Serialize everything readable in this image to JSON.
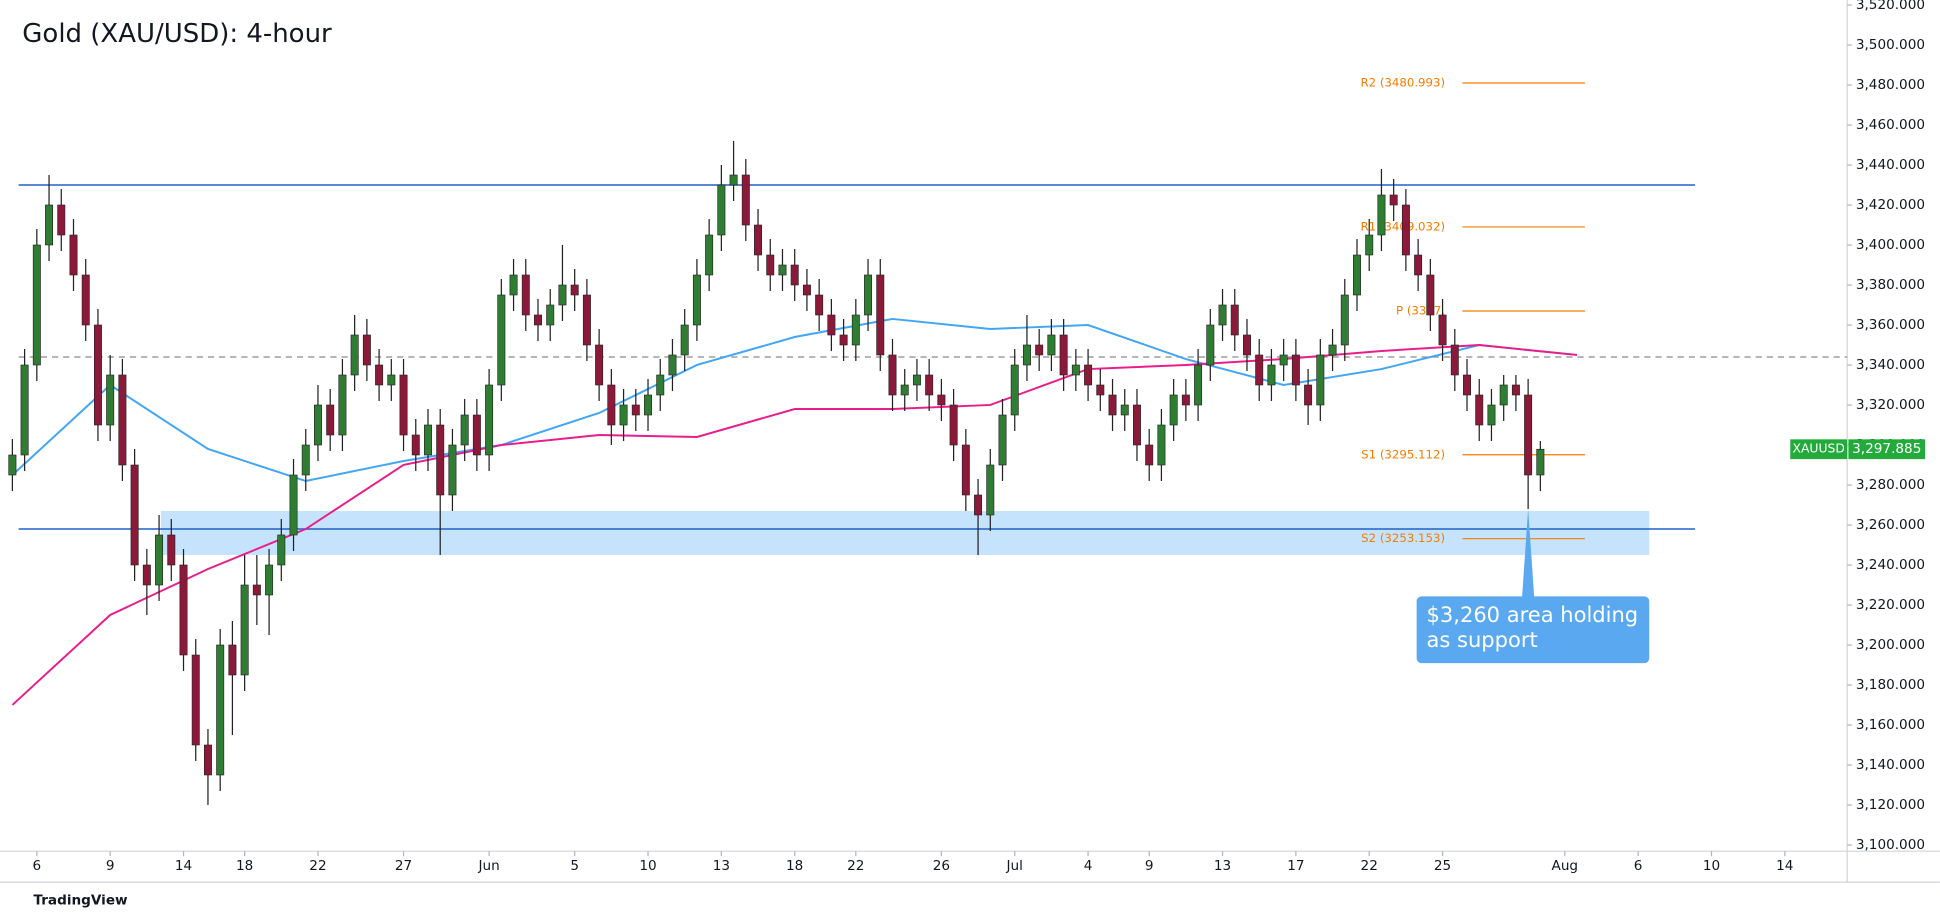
{
  "chart_data": {
    "type": "candlestick",
    "title": "Gold (XAU/USD): 4-hour",
    "symbol": "XAUUSD",
    "last_price": {
      "value": 3297.885,
      "label": "3,297.885"
    },
    "footer": "TradingView",
    "up_color": "#2e7d32",
    "down_color": "#8b1a3a",
    "open": [
      3285,
      3295,
      3340,
      3400,
      3420,
      3405,
      3385,
      3360,
      3310,
      3335,
      3290,
      3240,
      3230,
      3255,
      3240,
      3195,
      3150,
      3135,
      3200,
      3185,
      3230,
      3225,
      3240,
      3255,
      3285,
      3300,
      3320,
      3305,
      3335,
      3355,
      3340,
      3330,
      3335,
      3305,
      3295,
      3310,
      3275,
      3300,
      3315,
      3295,
      3330,
      3375,
      3385,
      3365,
      3360,
      3370,
      3380,
      3375,
      3350,
      3330,
      3310,
      3320,
      3315,
      3325,
      3335,
      3345,
      3360,
      3385,
      3405,
      3430,
      3435,
      3410,
      3395,
      3385,
      3390,
      3380,
      3375,
      3365,
      3355,
      3350,
      3365,
      3385,
      3345,
      3325,
      3330,
      3335,
      3325,
      3320,
      3300,
      3275,
      3265,
      3290,
      3315,
      3340,
      3350,
      3345,
      3355,
      3335,
      3340,
      3330,
      3325,
      3315,
      3320,
      3300,
      3290,
      3310,
      3325,
      3320,
      3340,
      3360,
      3370,
      3355,
      3345,
      3330,
      3340,
      3345,
      3330,
      3320,
      3345,
      3350,
      3375,
      3395,
      3405,
      3425,
      3420,
      3395,
      3385,
      3365,
      3350,
      3335,
      3325,
      3310,
      3320,
      3330,
      3325,
      3285
    ],
    "high": [
      3303,
      3348,
      3408,
      3435,
      3428,
      3413,
      3393,
      3368,
      3345,
      3343,
      3298,
      3248,
      3265,
      3263,
      3248,
      3203,
      3158,
      3208,
      3212,
      3245,
      3245,
      3248,
      3263,
      3293,
      3308,
      3330,
      3328,
      3343,
      3365,
      3363,
      3348,
      3343,
      3343,
      3313,
      3318,
      3318,
      3308,
      3323,
      3323,
      3338,
      3383,
      3393,
      3393,
      3373,
      3378,
      3400,
      3388,
      3383,
      3358,
      3338,
      3328,
      3328,
      3333,
      3343,
      3353,
      3368,
      3393,
      3413,
      3440,
      3452,
      3443,
      3418,
      3403,
      3398,
      3398,
      3388,
      3383,
      3373,
      3363,
      3373,
      3393,
      3393,
      3353,
      3338,
      3343,
      3343,
      3333,
      3328,
      3308,
      3283,
      3298,
      3323,
      3348,
      3365,
      3358,
      3363,
      3363,
      3348,
      3348,
      3338,
      3333,
      3328,
      3328,
      3308,
      3318,
      3333,
      3333,
      3348,
      3368,
      3378,
      3378,
      3363,
      3353,
      3348,
      3353,
      3353,
      3338,
      3353,
      3358,
      3383,
      3403,
      3413,
      3438,
      3433,
      3428,
      3403,
      3393,
      3373,
      3358,
      3343,
      3333,
      3328,
      3335,
      3335,
      3333,
      3302
    ],
    "low": [
      3277,
      3287,
      3332,
      3392,
      3397,
      3377,
      3352,
      3302,
      3302,
      3282,
      3232,
      3215,
      3222,
      3232,
      3187,
      3142,
      3120,
      3127,
      3155,
      3177,
      3210,
      3205,
      3232,
      3247,
      3277,
      3292,
      3297,
      3297,
      3327,
      3332,
      3322,
      3322,
      3297,
      3287,
      3287,
      3245,
      3267,
      3292,
      3287,
      3287,
      3322,
      3367,
      3357,
      3352,
      3352,
      3362,
      3367,
      3342,
      3322,
      3300,
      3302,
      3307,
      3307,
      3317,
      3327,
      3337,
      3352,
      3377,
      3397,
      3422,
      3402,
      3387,
      3377,
      3377,
      3372,
      3367,
      3357,
      3347,
      3342,
      3342,
      3357,
      3337,
      3317,
      3317,
      3322,
      3317,
      3312,
      3292,
      3267,
      3245,
      3257,
      3282,
      3307,
      3332,
      3337,
      3337,
      3327,
      3327,
      3322,
      3317,
      3307,
      3307,
      3292,
      3282,
      3282,
      3302,
      3312,
      3312,
      3332,
      3352,
      3347,
      3337,
      3322,
      3322,
      3332,
      3322,
      3310,
      3312,
      3337,
      3342,
      3367,
      3387,
      3397,
      3412,
      3387,
      3377,
      3357,
      3342,
      3327,
      3317,
      3302,
      3302,
      3312,
      3317,
      3268,
      3277
    ],
    "close": [
      3295,
      3340,
      3400,
      3420,
      3405,
      3385,
      3360,
      3310,
      3335,
      3290,
      3240,
      3230,
      3255,
      3240,
      3195,
      3150,
      3135,
      3200,
      3185,
      3230,
      3225,
      3240,
      3255,
      3285,
      3300,
      3320,
      3305,
      3335,
      3355,
      3340,
      3330,
      3335,
      3305,
      3295,
      3310,
      3275,
      3300,
      3315,
      3295,
      3330,
      3375,
      3385,
      3365,
      3360,
      3370,
      3380,
      3375,
      3350,
      3330,
      3310,
      3320,
      3315,
      3325,
      3335,
      3345,
      3360,
      3385,
      3405,
      3430,
      3435,
      3410,
      3395,
      3385,
      3390,
      3380,
      3375,
      3365,
      3355,
      3350,
      3365,
      3385,
      3345,
      3325,
      3330,
      3335,
      3325,
      3320,
      3300,
      3275,
      3265,
      3290,
      3315,
      3340,
      3350,
      3345,
      3355,
      3335,
      3340,
      3330,
      3325,
      3315,
      3320,
      3300,
      3290,
      3310,
      3325,
      3320,
      3340,
      3360,
      3370,
      3355,
      3345,
      3330,
      3340,
      3345,
      3330,
      3320,
      3345,
      3350,
      3375,
      3395,
      3405,
      3425,
      3420,
      3395,
      3385,
      3365,
      3350,
      3335,
      3325,
      3310,
      3320,
      3330,
      3325,
      3285,
      3297.885
    ],
    "series": [
      {
        "color": "#42a5f5",
        "x": [
          0,
          8,
          16,
          24,
          32,
          40,
          48,
          56,
          64,
          72,
          80,
          88,
          96,
          104,
          112,
          120,
          128
        ],
        "values": [
          3285,
          3330,
          3298,
          3282,
          3292,
          3300,
          3316,
          3340,
          3354,
          3363,
          3358,
          3360,
          3343,
          3330,
          3338,
          3350,
          3345
        ]
      },
      {
        "color": "#e91e8c",
        "x": [
          0,
          8,
          16,
          24,
          32,
          40,
          48,
          56,
          64,
          72,
          80,
          88,
          96,
          104,
          112,
          120,
          128
        ],
        "values": [
          3170,
          3215,
          3238,
          3258,
          3290,
          3300,
          3305,
          3304,
          3318,
          3318,
          3320,
          3338,
          3340,
          3343,
          3347,
          3350,
          3345
        ]
      }
    ],
    "levels": [
      {
        "value": 3430,
        "color": "#1e63c8",
        "dashed": false
      },
      {
        "value": 3258,
        "color": "#1e63c8",
        "dashed": false
      },
      {
        "value": 3344,
        "color": "#9e9e9e",
        "dashed": true
      }
    ],
    "zone": {
      "low": 3245,
      "high": 3267,
      "color": "#bbdefb"
    },
    "pivots": [
      {
        "label": "R2 (3480.993)",
        "value": 3480.993
      },
      {
        "label": "R1 (3409.032)",
        "value": 3409.032
      },
      {
        "label": "P (3367.",
        "value": 3367
      },
      {
        "label": "S1 (3295.112)",
        "value": 3295.112
      },
      {
        "label": "S2 (3253.153)",
        "value": 3253.153
      }
    ],
    "pivot_color": "#f57c00",
    "annotation": [
      "$3,260 area holding",
      "as support"
    ],
    "annotation_color": "#5aa9f0",
    "xlim": [
      -0.2,
      150.1
    ],
    "xticks": [
      {
        "value": 2,
        "label": "6"
      },
      {
        "value": 8,
        "label": "9"
      },
      {
        "value": 14,
        "label": "14"
      },
      {
        "value": 19,
        "label": "18"
      },
      {
        "value": 25,
        "label": "22"
      },
      {
        "value": 32,
        "label": "27"
      },
      {
        "value": 39,
        "label": "Jun"
      },
      {
        "value": 46,
        "label": "5"
      },
      {
        "value": 52,
        "label": "10"
      },
      {
        "value": 58,
        "label": "13"
      },
      {
        "value": 64,
        "label": "18"
      },
      {
        "value": 69,
        "label": "22"
      },
      {
        "value": 76,
        "label": "26"
      },
      {
        "value": 82,
        "label": "Jul"
      },
      {
        "value": 88,
        "label": "4"
      },
      {
        "value": 93,
        "label": "9"
      },
      {
        "value": 99,
        "label": "13"
      },
      {
        "value": 105,
        "label": "17"
      },
      {
        "value": 111,
        "label": "22"
      },
      {
        "value": 117,
        "label": "25"
      },
      {
        "value": 127,
        "label": "Aug"
      },
      {
        "value": 133,
        "label": "6"
      },
      {
        "value": 139,
        "label": "10"
      },
      {
        "value": 145,
        "label": "14"
      }
    ],
    "ylim": [
      3096.9,
      3522.5
    ],
    "yticks": [
      {
        "value": 3100,
        "label": "3,100.000"
      },
      {
        "value": 3120,
        "label": "3,120.000"
      },
      {
        "value": 3140,
        "label": "3,140.000"
      },
      {
        "value": 3160,
        "label": "3,160.000"
      },
      {
        "value": 3180,
        "label": "3,180.000"
      },
      {
        "value": 3200,
        "label": "3,200.000"
      },
      {
        "value": 3220,
        "label": "3,220.000"
      },
      {
        "value": 3240,
        "label": "3,240.000"
      },
      {
        "value": 3260,
        "label": "3,260.000"
      },
      {
        "value": 3280,
        "label": "3,280.000"
      },
      {
        "value": 3300,
        "label": "3,300.000"
      },
      {
        "value": 3320,
        "label": "3,320.000"
      },
      {
        "value": 3340,
        "label": "3,340.000"
      },
      {
        "value": 3360,
        "label": "3,360.000"
      },
      {
        "value": 3380,
        "label": "3,380.000"
      },
      {
        "value": 3400,
        "label": "3,400.000"
      },
      {
        "value": 3420,
        "label": "3,420.000"
      },
      {
        "value": 3440,
        "label": "3,440.000"
      },
      {
        "value": 3460,
        "label": "3,460.000"
      },
      {
        "value": 3480,
        "label": "3,480.000"
      },
      {
        "value": 3500,
        "label": "3,500.000"
      },
      {
        "value": 3520,
        "label": "3,520.000"
      }
    ],
    "grid": false
  }
}
